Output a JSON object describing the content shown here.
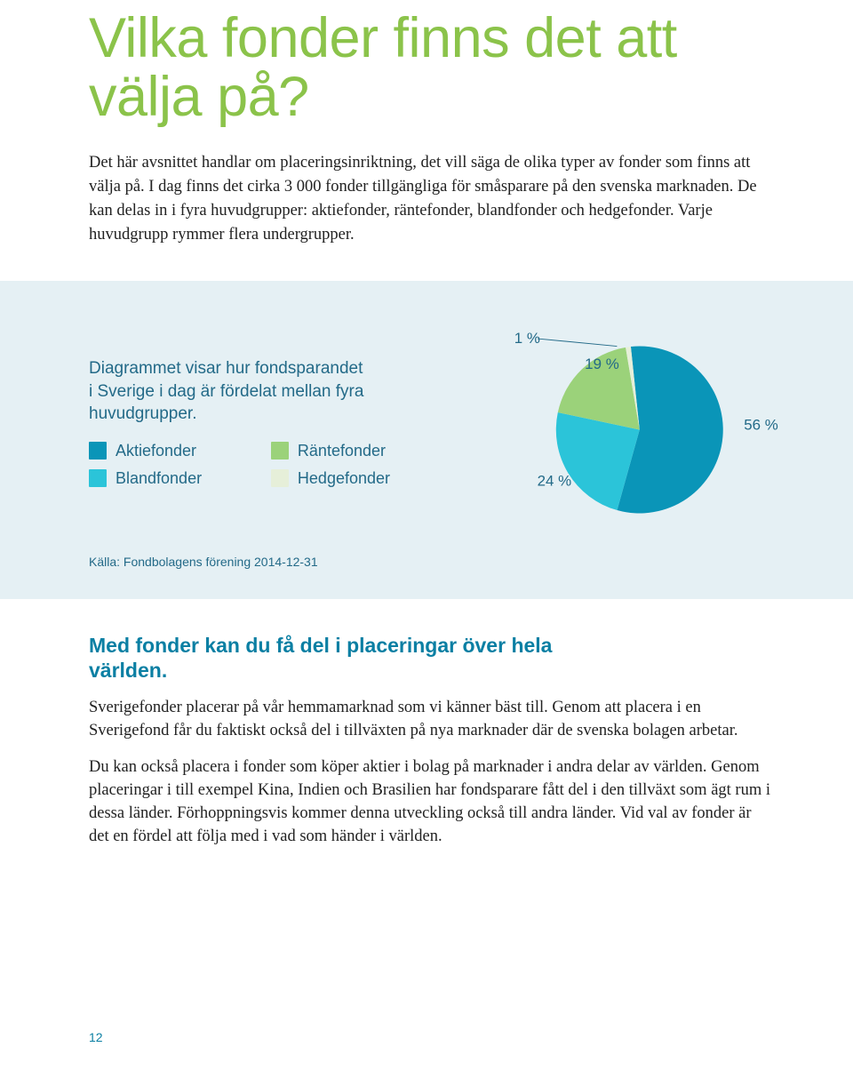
{
  "title": "Vilka fonder finns det att välja på?",
  "intro": "Det här avsnittet handlar om placeringsinriktning, det vill säga de olika typer av fonder som finns att välja på. I dag finns det cirka 3 000 fonder tillgängliga för småsparare på den svenska marknaden. De kan delas in i fyra huvudgrupper: aktiefonder, räntefonder, blandfonder och hedgefonder. Varje huvudgrupp rymmer flera undergrupper.",
  "chart": {
    "type": "pie",
    "panel_bg": "#e5f0f4",
    "text_color": "#236a88",
    "description": "Diagrammet visar hur fondsparandet i Sverige i dag är fördelat mellan fyra huvudgrupper.",
    "slices": [
      {
        "key": "aktiefonder",
        "label": "Aktiefonder",
        "value": 56,
        "display": "56 %",
        "color": "#0a95b8"
      },
      {
        "key": "blandfonder",
        "label": "Blandfonder",
        "value": 24,
        "display": "24 %",
        "color": "#2bc4d9"
      },
      {
        "key": "rantefonder",
        "label": "Räntefonder",
        "value": 19,
        "display": "19 %",
        "color": "#9bd27a"
      },
      {
        "key": "hedgefonder",
        "label": "Hedgefonder",
        "value": 1,
        "display": "1 %",
        "color": "#e6efd9"
      }
    ],
    "source": "Källa: Fondbolagens förening 2014-12-31",
    "label_fontsize": 19,
    "value_fontsize": 18,
    "leader_color": "#236a88"
  },
  "section": {
    "heading": "Med fonder kan du få del i placeringar över hela världen.",
    "heading_color": "#0a7fa3",
    "p1": "Sverigefonder placerar på vår hemmamarknad som vi känner bäst till. Genom att placera i en Sverigefond får du faktiskt också del i tillväxten på nya marknader där de svenska bolagen arbetar.",
    "p2": "Du kan också placera i fonder som köper aktier i bolag på marknader i andra delar av världen. Genom placeringar i till exempel Kina, Indien och Brasilien har fondsparare fått del i den tillväxt som ägt rum i dessa länder. Förhoppningsvis kommer denna utveckling också till andra länder. Vid val av fonder är det en fördel att följa med i vad som händer i världen."
  },
  "page_number": "12"
}
